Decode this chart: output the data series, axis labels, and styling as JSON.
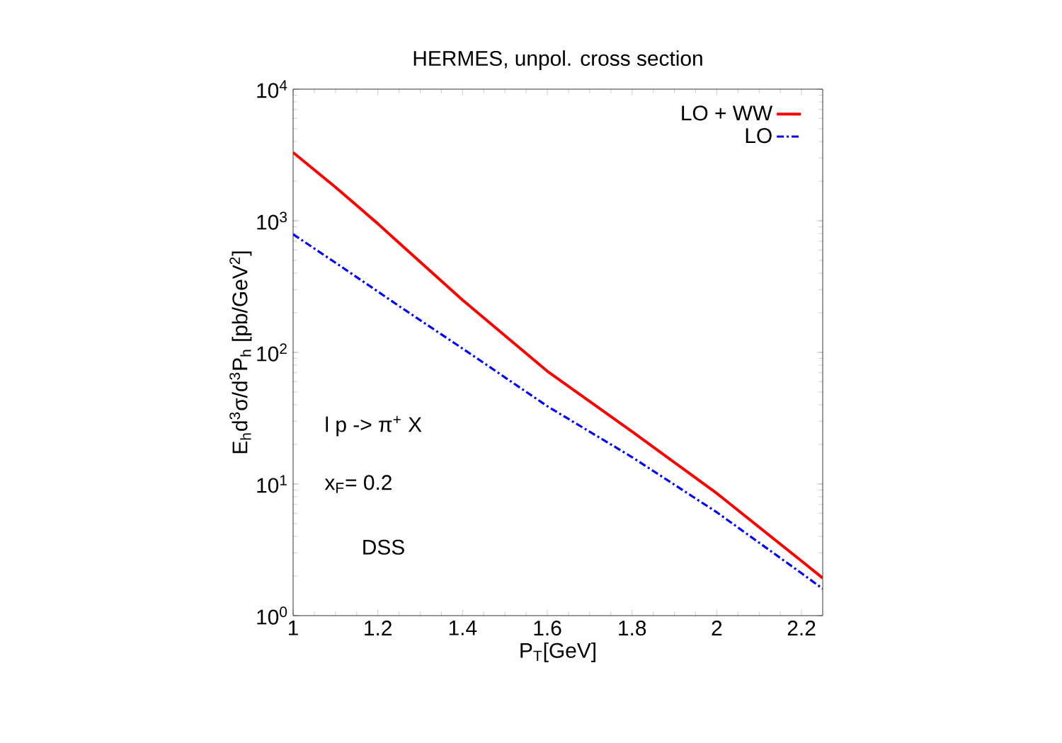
{
  "chart_data": {
    "type": "line",
    "title": "HERMES, unpol. cross section",
    "xlabel": "P$_{T}$[GeV]",
    "ylabel": "E$_{h}$d$^{3}$σ/d$^{3}$P$_{h}$ [pb/GeV$^{2}$]",
    "x": [
      1,
      1.1,
      1.2,
      1.25,
      1.4,
      1.6,
      1.8,
      2.0,
      2.2,
      2.25
    ],
    "series": [
      {
        "name": "LO + WW",
        "color": "#ff0000",
        "line_style": "solid",
        "values": [
          3300,
          1800,
          950,
          680,
          250,
          72,
          25,
          8.5,
          2.6,
          1.93
        ]
      },
      {
        "name": "LO",
        "color": "#0000ff",
        "line_style": "dashdot",
        "values": [
          790,
          480,
          290,
          225,
          107,
          39,
          16,
          6.1,
          2.1,
          1.6
        ]
      }
    ],
    "log": "y",
    "xlim": [
      1,
      2.25
    ],
    "ylim": [
      1,
      10000
    ],
    "xticks": [
      1,
      1.2,
      1.4,
      1.6,
      1.8,
      2,
      2.2
    ],
    "yticks": [
      {
        "value": 1,
        "label": "10$^{0}$"
      },
      {
        "value": 10,
        "label": "10$^{1}$"
      },
      {
        "value": 100,
        "label": "10$^{2}$"
      },
      {
        "value": 1000,
        "label": "10$^{3}$"
      },
      {
        "value": 10000,
        "label": "10$^{4}$"
      }
    ],
    "legend": "top right",
    "grid": false,
    "marker": "none",
    "annotations": [
      "l p -> π$^{+}$ X",
      "x$_{F}$= 0.2",
      "DSS"
    ]
  }
}
